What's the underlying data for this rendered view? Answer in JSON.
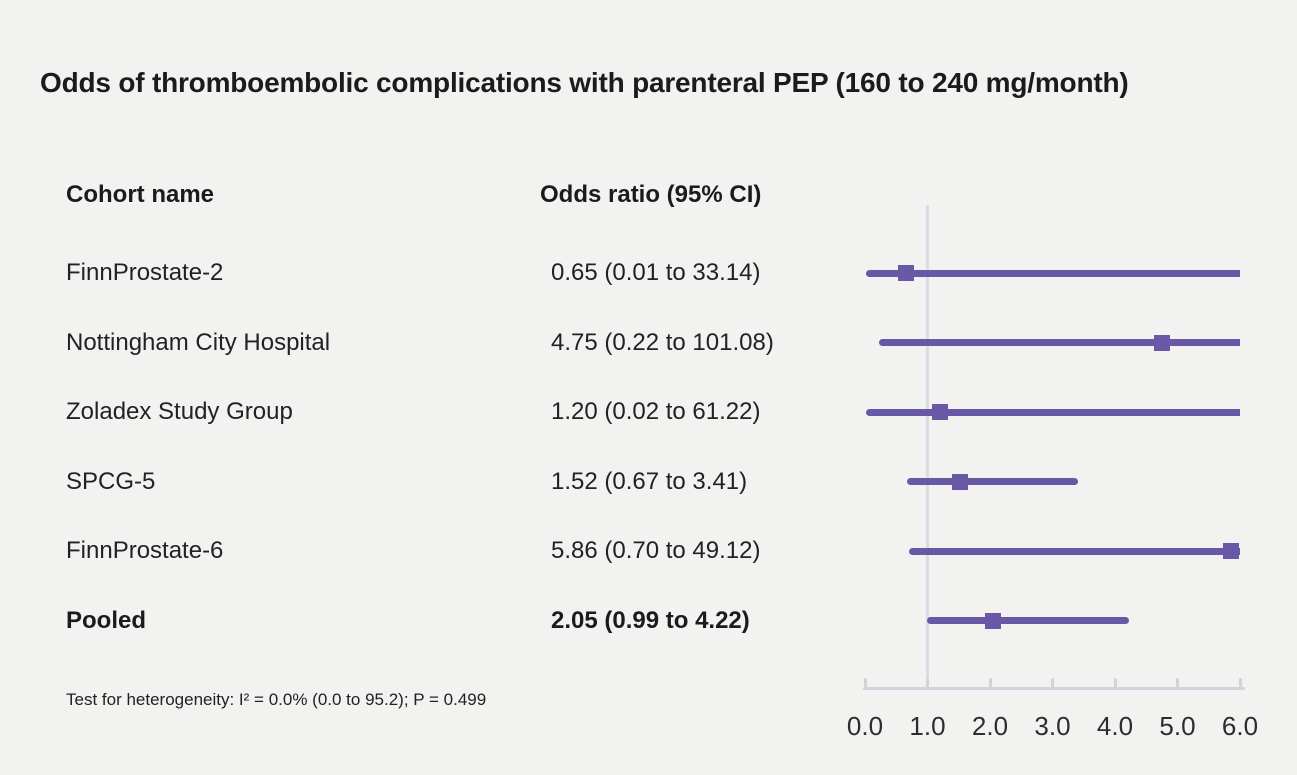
{
  "title": "Odds of thromboembolic complications with parenteral PEP (160 to 240 mg/month)",
  "table": {
    "col1_header": "Cohort name",
    "col2_header": "Odds ratio (95% CI)"
  },
  "footnote": "Test for heterogeneity: I² = 0.0% (0.0 to 95.2); P = 0.499",
  "chart_data": {
    "type": "forest",
    "title": "Odds of thromboembolic complications with parenteral PEP (160 to 240 mg/month)",
    "xlabel": "",
    "ylabel": "",
    "axis": {
      "min": 0.0,
      "max": 6.0,
      "tick_values": [
        0.0,
        1.0,
        2.0,
        3.0,
        4.0,
        5.0,
        6.0
      ],
      "tick_labels": [
        "0.0",
        "1.0",
        "2.0",
        "3.0",
        "4.0",
        "5.0",
        "6.0"
      ],
      "reference_line": 1.0,
      "grid": false
    },
    "rows": [
      {
        "label": "FinnProstate-2",
        "display": "0.65 (0.01 to 33.14)",
        "or": 0.65,
        "ci_low": 0.01,
        "ci_high": 33.14,
        "bold": false
      },
      {
        "label": "Nottingham City Hospital",
        "display": "4.75 (0.22 to 101.08)",
        "or": 4.75,
        "ci_low": 0.22,
        "ci_high": 101.08,
        "bold": false
      },
      {
        "label": "Zoladex Study Group",
        "display": "1.20 (0.02 to 61.22)",
        "or": 1.2,
        "ci_low": 0.02,
        "ci_high": 61.22,
        "bold": false
      },
      {
        "label": "SPCG-5",
        "display": "1.52 (0.67 to 3.41)",
        "or": 1.52,
        "ci_low": 0.67,
        "ci_high": 3.41,
        "bold": false
      },
      {
        "label": "FinnProstate-6",
        "display": "5.86 (0.70 to 49.12)",
        "or": 5.86,
        "ci_low": 0.7,
        "ci_high": 49.12,
        "bold": false
      },
      {
        "label": "Pooled",
        "display": "2.05 (0.99 to 4.22)",
        "or": 2.05,
        "ci_low": 0.99,
        "ci_high": 4.22,
        "bold": true
      }
    ],
    "colors": {
      "marker": "#6858a5",
      "ci_line": "#6858a5",
      "axis": "#cfd5dd",
      "reference_line": "#d8dce4",
      "background": "#f2f2f1"
    }
  }
}
